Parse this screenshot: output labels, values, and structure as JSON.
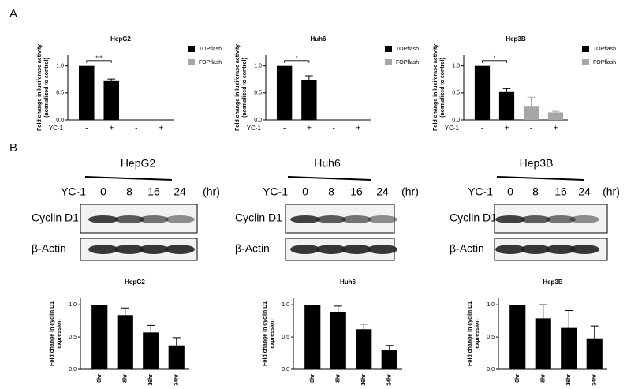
{
  "panels": [
    "A",
    "B"
  ],
  "chart_data": [
    {
      "type": "bar",
      "title": "HepG2",
      "y_label": [
        "Fold change in luciferase activity",
        "(normalized to control)"
      ],
      "x_row_label": "YC-1",
      "categories": [
        "-",
        "+",
        "-",
        "+"
      ],
      "series": [
        {
          "name": "TOPflash",
          "color": "#000000",
          "values": [
            1.0,
            0.72,
            null,
            null
          ],
          "errors": [
            0,
            0.04,
            null,
            null
          ]
        },
        {
          "name": "FOPflash",
          "color": "#a6a6a6",
          "values": [
            null,
            null,
            0,
            0
          ],
          "errors": [
            null,
            null,
            0,
            0
          ]
        }
      ],
      "annotation": "***",
      "ylim": [
        0,
        1.2
      ],
      "yticks": [
        {
          "value": 0,
          "label": "0.0"
        },
        0.5,
        {
          "value": 1,
          "label": "1.0"
        }
      ],
      "legend": "right"
    },
    {
      "type": "bar",
      "title": "Huh6",
      "y_label": [
        "Fold change in luciferase activity",
        "(normalized to control)"
      ],
      "x_row_label": "YC-1",
      "categories": [
        "-",
        "+",
        "-",
        "+"
      ],
      "series": [
        {
          "name": "TOPflash",
          "color": "#000000",
          "values": [
            1.0,
            0.74,
            null,
            null
          ],
          "errors": [
            0,
            0.08,
            null,
            null
          ]
        },
        {
          "name": "FOPflash",
          "color": "#a6a6a6",
          "values": [
            null,
            null,
            0,
            0
          ],
          "errors": [
            null,
            null,
            0,
            0
          ]
        }
      ],
      "annotation": "*",
      "ylim": [
        0,
        1.2
      ],
      "yticks": [
        {
          "value": 0,
          "label": "0.0"
        },
        0.5,
        {
          "value": 1,
          "label": "1.0"
        }
      ],
      "legend": "right"
    },
    {
      "type": "bar",
      "title": "Hep3B",
      "y_label": [
        "Fold change in luciferase activity",
        "(normalized to control)"
      ],
      "x_row_label": "YC-1",
      "categories": [
        "-",
        "+",
        "-",
        "+"
      ],
      "series": [
        {
          "name": "TOPflash",
          "color": "#000000",
          "values": [
            1.0,
            0.53,
            null,
            null
          ],
          "errors": [
            0,
            0.05,
            null,
            null
          ]
        },
        {
          "name": "FOPflash",
          "color": "#a6a6a6",
          "values": [
            null,
            null,
            0.26,
            0.14
          ],
          "errors": [
            null,
            null,
            0.16,
            0.02
          ]
        }
      ],
      "annotation": "*",
      "ylim": [
        0,
        1.2
      ],
      "yticks": [
        {
          "value": 0,
          "label": "0.0"
        },
        0.5,
        {
          "value": 1,
          "label": "1.0"
        }
      ],
      "legend": "right"
    },
    {
      "type": "bar",
      "title": "HepG2",
      "y_label": [
        "Fold change in cyclin D1",
        "expression"
      ],
      "categories": [
        "0hr",
        "8hr",
        "16hr",
        "24hr"
      ],
      "series": [
        {
          "color": "#000000",
          "values": [
            1.0,
            0.84,
            0.57,
            0.37
          ],
          "errors": [
            0,
            0.11,
            0.11,
            0.12
          ]
        }
      ],
      "ylim": [
        0,
        1.1
      ],
      "yticks": [
        {
          "value": 0,
          "label": "0.0"
        },
        0.5,
        {
          "value": 1,
          "label": "1.0"
        }
      ],
      "xtick_rotation": 90
    },
    {
      "type": "bar",
      "title": "Huh6",
      "y_label": [
        "Fold change in cyclin D1",
        "expression"
      ],
      "categories": [
        "0hr",
        "8hr",
        "16hr",
        "24hr"
      ],
      "series": [
        {
          "color": "#000000",
          "values": [
            1.0,
            0.88,
            0.62,
            0.3
          ],
          "errors": [
            0,
            0.1,
            0.08,
            0.07
          ]
        }
      ],
      "ylim": [
        0,
        1.1
      ],
      "yticks": [
        {
          "value": 0,
          "label": "0.0"
        },
        0.5,
        {
          "value": 1,
          "label": "1.0"
        }
      ],
      "xtick_rotation": 90
    },
    {
      "type": "bar",
      "title": "Hep3B",
      "y_label": [
        "Fold change in cyclin D1",
        "expression"
      ],
      "categories": [
        "0hr",
        "8hr",
        "16hr",
        "24hr"
      ],
      "series": [
        {
          "color": "#000000",
          "values": [
            1.0,
            0.79,
            0.64,
            0.48
          ],
          "errors": [
            0,
            0.21,
            0.27,
            0.19
          ]
        }
      ],
      "ylim": [
        0,
        1.1
      ],
      "yticks": [
        {
          "value": 0,
          "label": "0.0"
        },
        0.5,
        {
          "value": 1,
          "label": "1.0"
        }
      ],
      "xtick_rotation": 90
    }
  ],
  "blots": [
    {
      "cell_line": "HepG2",
      "treatment": "YC-1",
      "times": [
        "0",
        "8",
        "16",
        "24"
      ],
      "unit": "(hr)",
      "rows": [
        "Cyclin D1",
        "β-Actin"
      ]
    },
    {
      "cell_line": "Huh6",
      "treatment": "YC-1",
      "times": [
        "0",
        "8",
        "16",
        "24"
      ],
      "unit": "(hr)",
      "rows": [
        "Cyclin D1",
        "β-Actin"
      ]
    },
    {
      "cell_line": "Hep3B",
      "treatment": "YC-1",
      "times": [
        "0",
        "8",
        "16",
        "24"
      ],
      "unit": "(hr)",
      "rows": [
        "Cyclin D1",
        "β-Actin"
      ]
    }
  ]
}
